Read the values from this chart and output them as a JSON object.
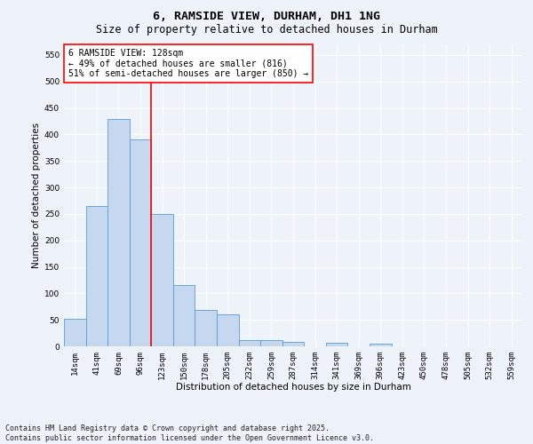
{
  "title": "6, RAMSIDE VIEW, DURHAM, DH1 1NG",
  "subtitle": "Size of property relative to detached houses in Durham",
  "xlabel": "Distribution of detached houses by size in Durham",
  "ylabel": "Number of detached properties",
  "categories": [
    "14sqm",
    "41sqm",
    "69sqm",
    "96sqm",
    "123sqm",
    "150sqm",
    "178sqm",
    "205sqm",
    "232sqm",
    "259sqm",
    "287sqm",
    "314sqm",
    "341sqm",
    "369sqm",
    "396sqm",
    "423sqm",
    "450sqm",
    "478sqm",
    "505sqm",
    "532sqm",
    "559sqm"
  ],
  "values": [
    52,
    265,
    430,
    390,
    250,
    115,
    68,
    60,
    12,
    12,
    8,
    0,
    6,
    0,
    5,
    0,
    0,
    0,
    0,
    0,
    0
  ],
  "bar_color": "#c5d8f0",
  "bar_edge_color": "#5b9bd5",
  "vline_x": 3.5,
  "vline_color": "red",
  "annotation_text": "6 RAMSIDE VIEW: 128sqm\n← 49% of detached houses are smaller (816)\n51% of semi-detached houses are larger (850) →",
  "ann_box_color": "white",
  "ann_border_color": "red",
  "ylim": [
    0,
    570
  ],
  "yticks": [
    0,
    50,
    100,
    150,
    200,
    250,
    300,
    350,
    400,
    450,
    500,
    550
  ],
  "bg_color": "#eef2f9",
  "grid_color": "#ffffff",
  "footer_line1": "Contains HM Land Registry data © Crown copyright and database right 2025.",
  "footer_line2": "Contains public sector information licensed under the Open Government Licence v3.0.",
  "title_fontsize": 9.5,
  "subtitle_fontsize": 8.5,
  "label_fontsize": 7.5,
  "tick_fontsize": 6.5,
  "ann_fontsize": 7,
  "footer_fontsize": 6
}
